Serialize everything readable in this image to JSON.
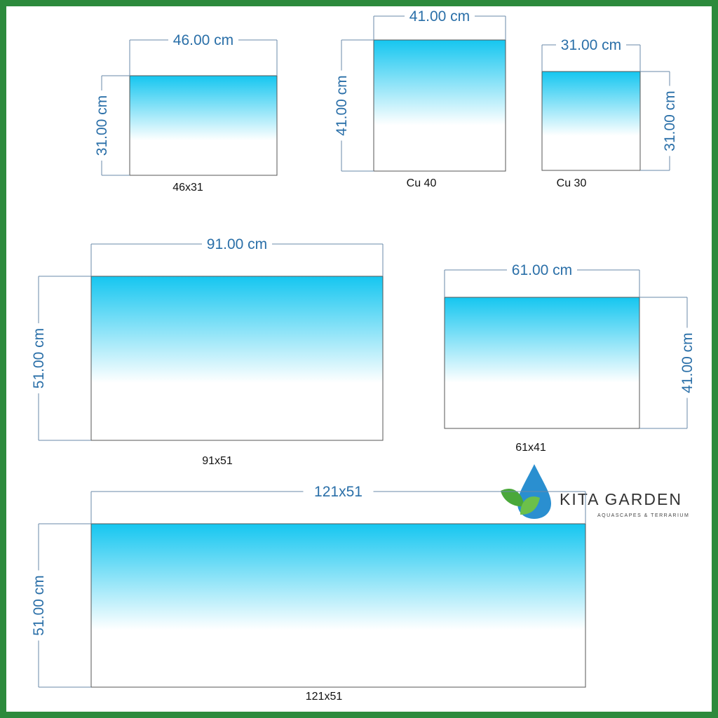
{
  "tanks": [
    {
      "width_label": "46.00 cm",
      "height_label": "31.00 cm",
      "name": "46x31"
    },
    {
      "width_label": "41.00 cm",
      "height_label": "41.00 cm",
      "name": "Cu 40"
    },
    {
      "width_label": "31.00 cm",
      "height_label": "31.00 cm",
      "name": "Cu 30"
    },
    {
      "width_label": "91.00 cm",
      "height_label": "51.00 cm",
      "name": "91x51"
    },
    {
      "width_label": "61.00 cm",
      "height_label": "41.00 cm",
      "name": "61x41"
    },
    {
      "width_label": "121x51",
      "height_label": "51.00 cm",
      "name": "121x51"
    }
  ],
  "logo": {
    "title": "KITA GARDEN",
    "subtitle": "AQUASCAPES & TERRARIUM"
  }
}
